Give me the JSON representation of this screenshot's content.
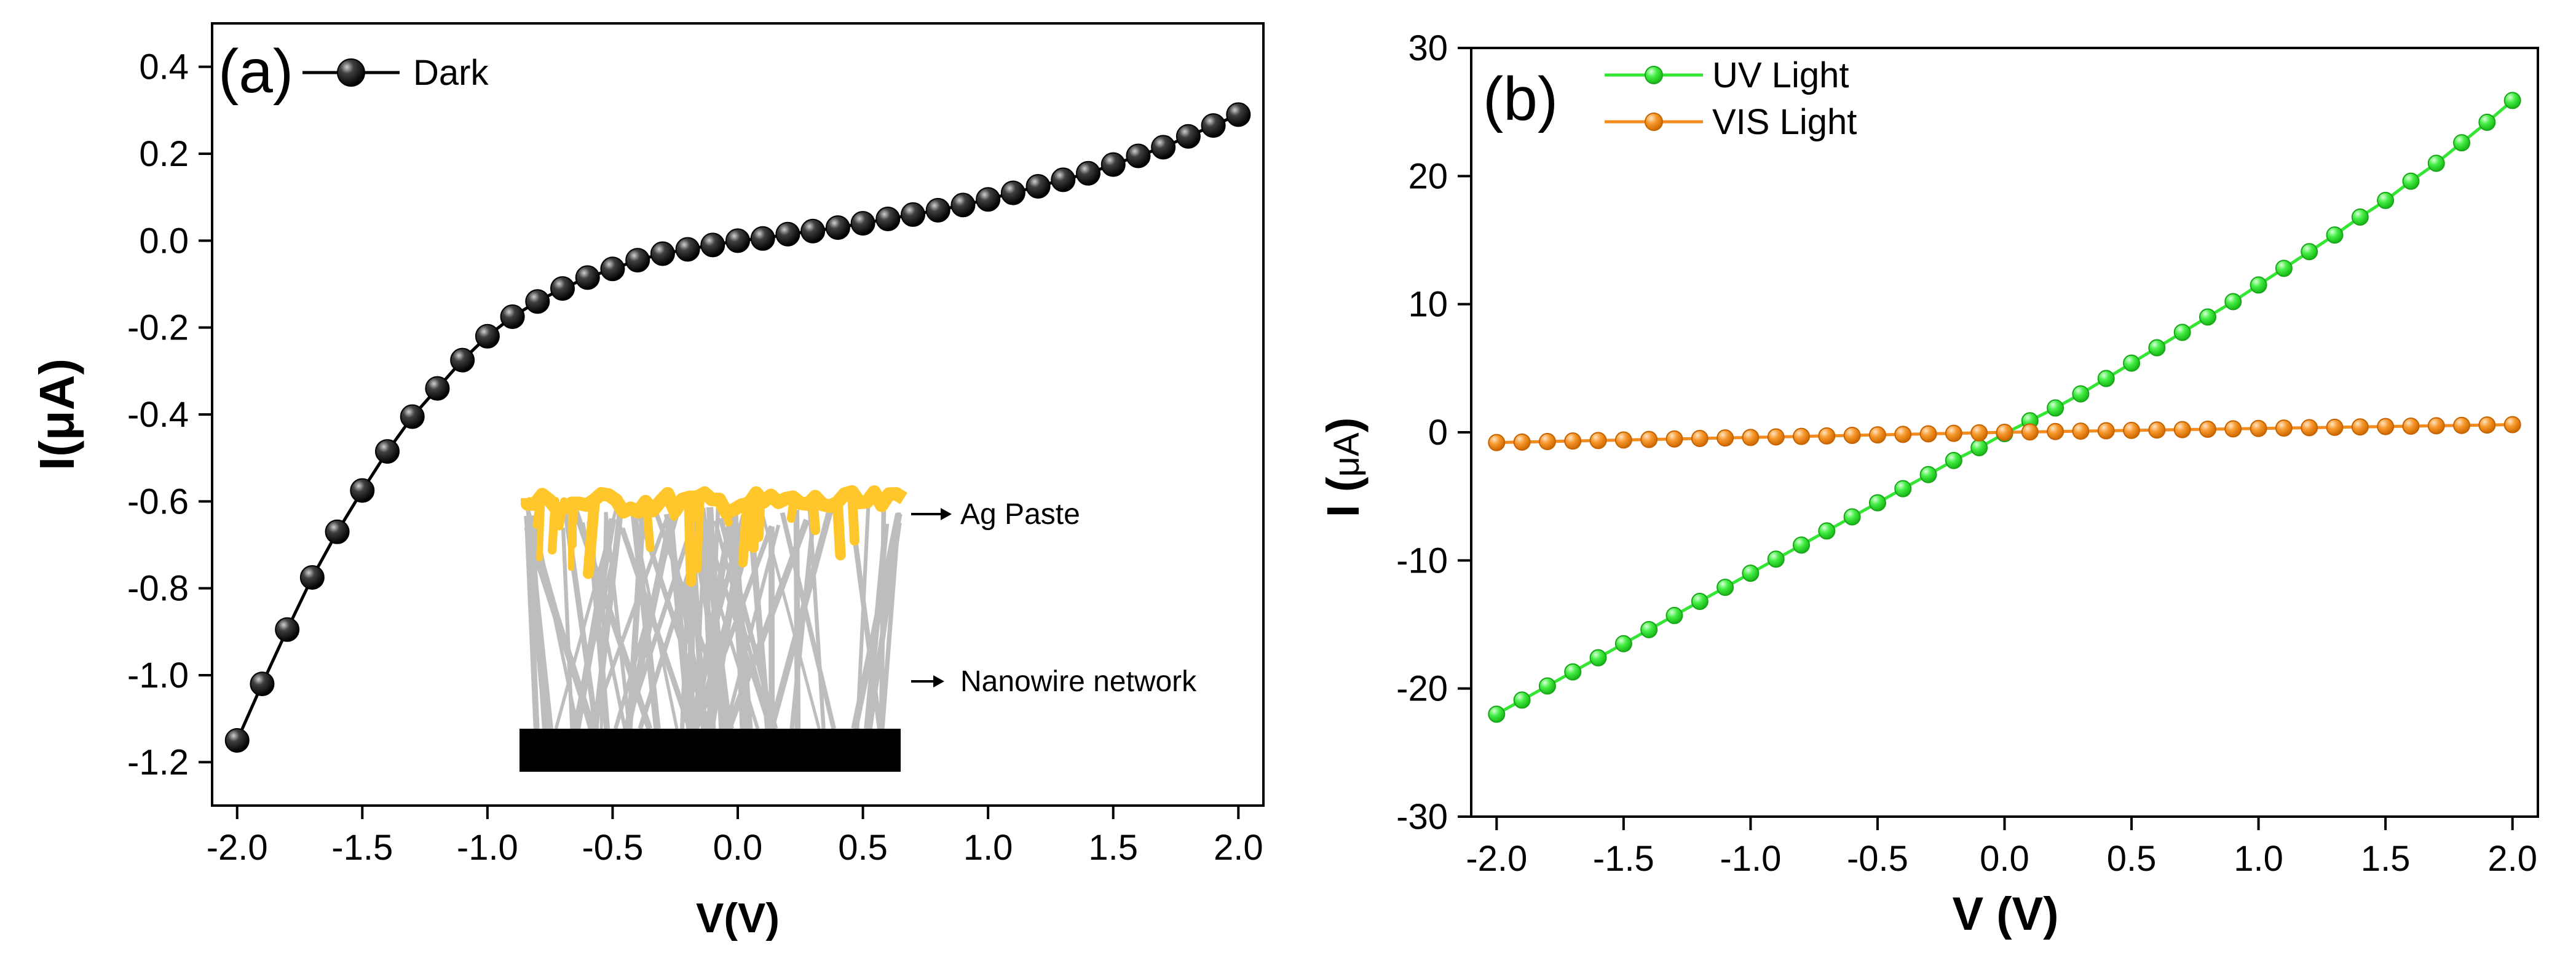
{
  "chart_data": [
    {
      "type": "line",
      "panel_label": "(a)",
      "xlabel": "V(V)",
      "ylabel": "I(μA)",
      "xlim": [
        -2.1,
        2.1
      ],
      "ylim": [
        -1.3,
        0.5
      ],
      "xticks": [
        -2.0,
        -1.5,
        -1.0,
        -0.5,
        0.0,
        0.5,
        1.0,
        1.5,
        2.0
      ],
      "xtick_labels": [
        "-2.0",
        "-1.5",
        "-1.0",
        "-0.5",
        "0.0",
        "0.5",
        "1.0",
        "1.5",
        "2.0"
      ],
      "yticks": [
        -1.2,
        -1.0,
        -0.8,
        -0.6,
        -0.4,
        -0.2,
        0.0,
        0.2,
        0.4
      ],
      "ytick_labels": [
        "-1.2",
        "-1.0",
        "-0.8",
        "-0.6",
        "-0.4",
        "-0.2",
        "0.0",
        "0.2",
        "0.4"
      ],
      "legend_position": "top-left",
      "series": [
        {
          "name": "Dark",
          "color": "#000000",
          "x": [
            -2.0,
            -1.9,
            -1.8,
            -1.7,
            -1.6,
            -1.5,
            -1.4,
            -1.3,
            -1.2,
            -1.1,
            -1.0,
            -0.9,
            -0.8,
            -0.7,
            -0.6,
            -0.5,
            -0.4,
            -0.3,
            -0.2,
            -0.1,
            0.0,
            0.1,
            0.2,
            0.3,
            0.4,
            0.5,
            0.6,
            0.7,
            0.8,
            0.9,
            1.0,
            1.1,
            1.2,
            1.3,
            1.4,
            1.5,
            1.6,
            1.7,
            1.8,
            1.9,
            2.0
          ],
          "y": [
            -1.15,
            -1.02,
            -0.895,
            -0.775,
            -0.67,
            -0.575,
            -0.485,
            -0.405,
            -0.34,
            -0.275,
            -0.22,
            -0.175,
            -0.14,
            -0.11,
            -0.085,
            -0.065,
            -0.045,
            -0.03,
            -0.02,
            -0.01,
            0.0,
            0.005,
            0.015,
            0.022,
            0.03,
            0.04,
            0.05,
            0.06,
            0.07,
            0.082,
            0.095,
            0.11,
            0.125,
            0.14,
            0.155,
            0.175,
            0.195,
            0.215,
            0.24,
            0.265,
            0.29
          ]
        }
      ],
      "inset": {
        "top_label": "Ag Paste",
        "bottom_label": "Nanowire network",
        "paste_color": "#ffc72c",
        "wire_color": "#bdbdbd",
        "substrate_color": "#000000"
      }
    },
    {
      "type": "line",
      "panel_label": "(b)",
      "xlabel": "V (V)",
      "ylabel_main": "I (",
      "ylabel_unit": "μA",
      "ylabel_close": ")",
      "xlim": [
        -2.1,
        2.1
      ],
      "ylim": [
        -30,
        30
      ],
      "xticks": [
        -2.0,
        -1.5,
        -1.0,
        -0.5,
        0.0,
        0.5,
        1.0,
        1.5,
        2.0
      ],
      "xtick_labels": [
        "-2.0",
        "-1.5",
        "-1.0",
        "-0.5",
        "0.0",
        "0.5",
        "1.0",
        "1.5",
        "2.0"
      ],
      "yticks": [
        -30,
        -20,
        -10,
        0,
        10,
        20,
        30
      ],
      "ytick_labels": [
        "-30",
        "-20",
        "-10",
        "0",
        "10",
        "20",
        "30"
      ],
      "legend_position": "top-left",
      "series": [
        {
          "name": "UV Light",
          "color": "#33e633",
          "x_start": -2.0,
          "x_end": 2.0,
          "x_step": 0.1,
          "y": [
            -22.0,
            -20.9,
            -19.8,
            -18.7,
            -17.6,
            -16.5,
            -15.4,
            -14.3,
            -13.2,
            -12.1,
            -11.0,
            -9.9,
            -8.8,
            -7.7,
            -6.6,
            -5.5,
            -4.4,
            -3.3,
            -2.2,
            -1.2,
            -0.1,
            0.9,
            1.9,
            3.0,
            4.2,
            5.4,
            6.6,
            7.8,
            9.0,
            10.2,
            11.5,
            12.8,
            14.1,
            15.4,
            16.8,
            18.1,
            19.6,
            21.0,
            22.6,
            24.2,
            25.9
          ]
        },
        {
          "name": "VIS Light",
          "color": "#f28c1e",
          "x_start": -2.0,
          "x_end": 2.0,
          "x_step": 0.1,
          "y": [
            -0.8,
            -0.76,
            -0.72,
            -0.68,
            -0.64,
            -0.6,
            -0.56,
            -0.52,
            -0.48,
            -0.44,
            -0.4,
            -0.36,
            -0.32,
            -0.28,
            -0.24,
            -0.2,
            -0.16,
            -0.12,
            -0.08,
            -0.04,
            0.0,
            0.03,
            0.06,
            0.09,
            0.12,
            0.15,
            0.18,
            0.21,
            0.24,
            0.27,
            0.3,
            0.33,
            0.36,
            0.39,
            0.42,
            0.45,
            0.48,
            0.51,
            0.54,
            0.57,
            0.6
          ]
        }
      ]
    }
  ]
}
